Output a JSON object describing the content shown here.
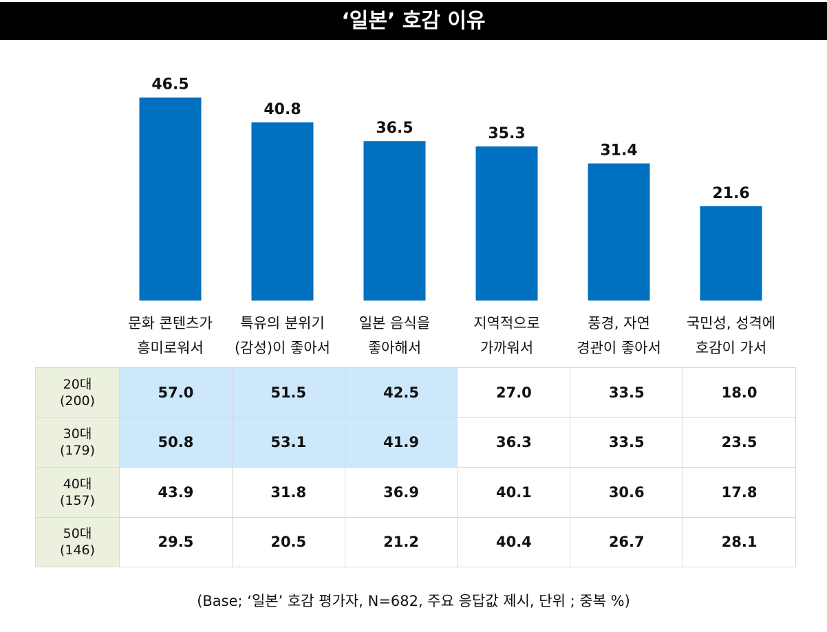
{
  "title": "‘일본’ 호감 이유",
  "chart_data": {
    "type": "bar",
    "title": "‘일본’ 호감 이유",
    "categories": [
      "문화 콘텐츠가 흥미로워서",
      "특유의 분위기 (감성)이 좋아서",
      "일본 음식을 좋아해서",
      "지역적으로 가까워서",
      "풍경, 자연 경관이 좋아서",
      "국민성, 성격에 호감이 가서"
    ],
    "category_lines": [
      [
        "문화 콘텐츠가",
        "흥미로워서"
      ],
      [
        "특유의 분위기",
        "(감성)이 좋아서"
      ],
      [
        "일본 음식을",
        "좋아해서"
      ],
      [
        "지역적으로",
        "가까워서"
      ],
      [
        "풍경, 자연",
        "경관이 좋아서"
      ],
      [
        "국민성, 성격에",
        "호감이 가서"
      ]
    ],
    "values": [
      46.5,
      40.8,
      36.5,
      35.3,
      31.4,
      21.6
    ],
    "value_labels": [
      "46.5",
      "40.8",
      "36.5",
      "35.3",
      "31.4",
      "21.6"
    ],
    "ylim": [
      0,
      50
    ],
    "color": "#0070c0"
  },
  "table": {
    "rows": [
      {
        "label": [
          "20대",
          "(200)"
        ],
        "cells": [
          "57.0",
          "51.5",
          "42.5",
          "27.0",
          "33.5",
          "18.0"
        ],
        "highlight": [
          true,
          true,
          true,
          false,
          false,
          false
        ]
      },
      {
        "label": [
          "30대",
          "(179)"
        ],
        "cells": [
          "50.8",
          "53.1",
          "41.9",
          "36.3",
          "33.5",
          "23.5"
        ],
        "highlight": [
          true,
          true,
          true,
          false,
          false,
          false
        ]
      },
      {
        "label": [
          "40대",
          "(157)"
        ],
        "cells": [
          "43.9",
          "31.8",
          "36.9",
          "40.1",
          "30.6",
          "17.8"
        ],
        "highlight": [
          false,
          false,
          false,
          false,
          false,
          false
        ]
      },
      {
        "label": [
          "50대",
          "(146)"
        ],
        "cells": [
          "29.5",
          "20.5",
          "21.2",
          "40.4",
          "26.7",
          "28.1"
        ],
        "highlight": [
          false,
          false,
          false,
          false,
          false,
          false
        ]
      }
    ]
  },
  "footnote": "(Base; ‘일본’ 호감 평가자, N=682,  주요 응답값 제시, 단위 ; 중복 %)"
}
